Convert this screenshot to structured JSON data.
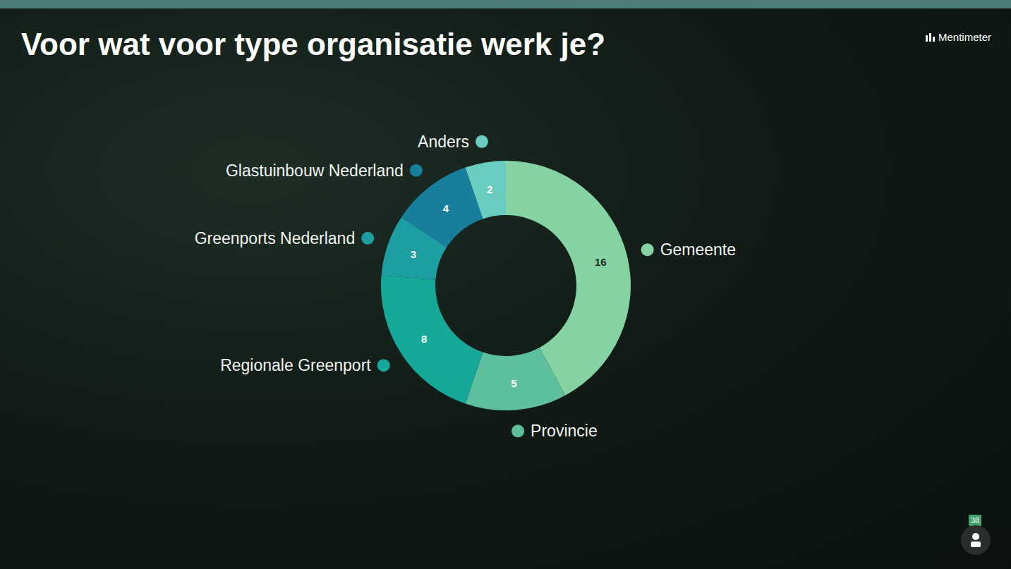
{
  "chart_data": {
    "type": "donut",
    "title": "Voor wat voor type organisatie werk je?",
    "categories": [
      "Gemeente",
      "Provincie",
      "Regionale Greenport",
      "Greenports Nederland",
      "Glastuinbouw Nederland",
      "Anders"
    ],
    "values": [
      16,
      5,
      8,
      3,
      4,
      2
    ],
    "colors": [
      "#85d3a2",
      "#5dbf9e",
      "#16a99a",
      "#1d9ea3",
      "#177f9b",
      "#6acdbf"
    ],
    "data_labels": true
  },
  "brand": "Mentimeter",
  "participants": 38
}
